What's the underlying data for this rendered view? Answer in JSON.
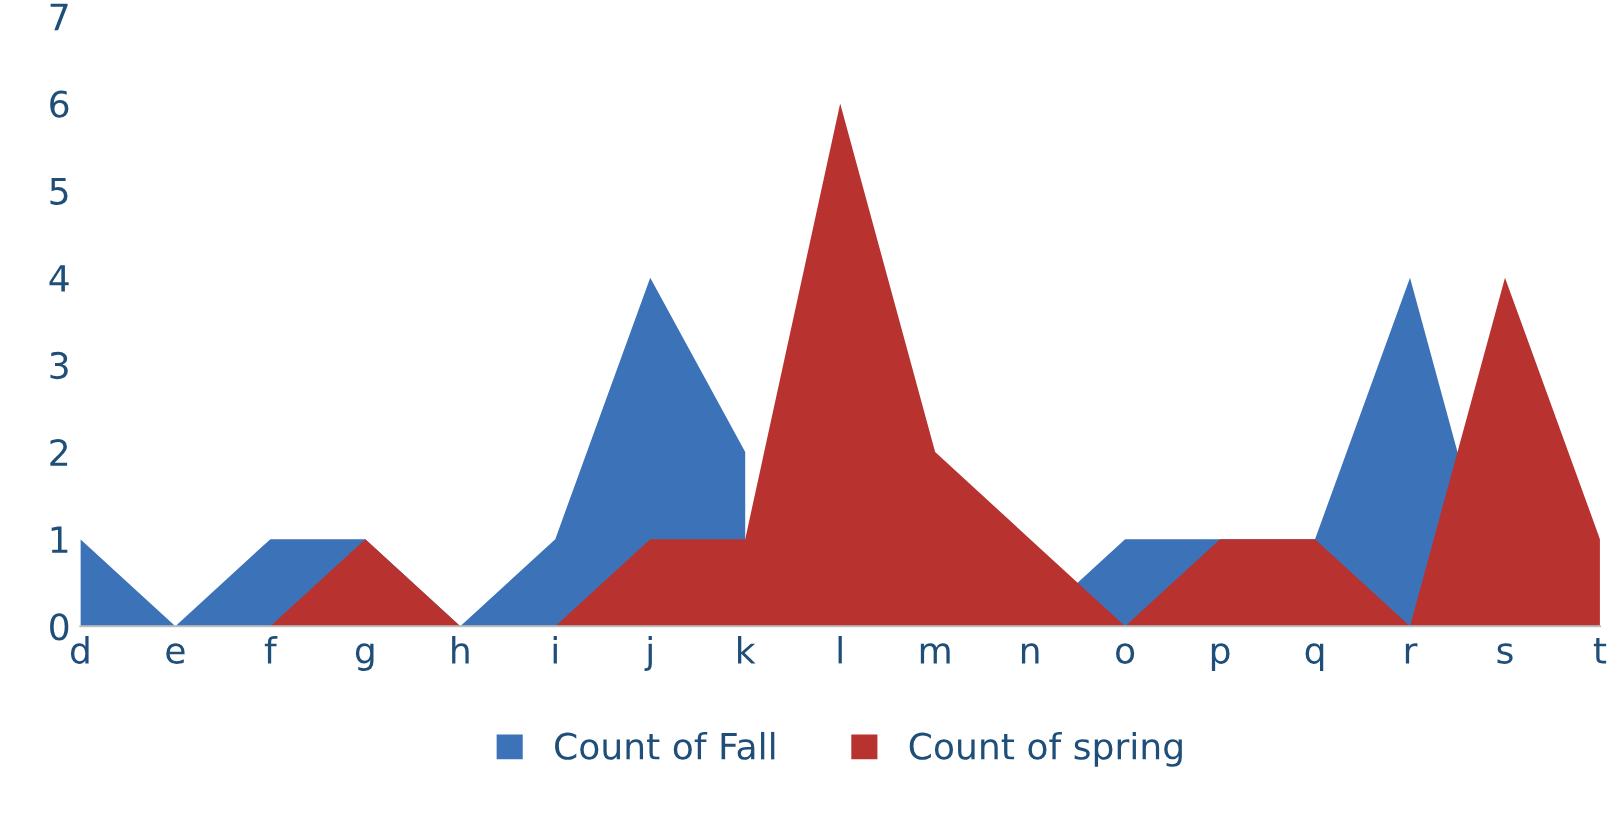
{
  "chart_data": {
    "type": "area",
    "categories": [
      "d",
      "e",
      "f",
      "g",
      "h",
      "i",
      "j",
      "k",
      "l",
      "m",
      "n",
      "o",
      "p",
      "q",
      "r",
      "s",
      "t"
    ],
    "series": [
      {
        "name": "Count of Fall",
        "color": "#3c72b8",
        "values": [
          1,
          0,
          1,
          1,
          0,
          1,
          4,
          2,
          null,
          null,
          0,
          1,
          1,
          1,
          4,
          0,
          null
        ]
      },
      {
        "name": "Count of spring",
        "color": "#b83330",
        "values": [
          0,
          0,
          0,
          1,
          0,
          0,
          1,
          1,
          6,
          2,
          1,
          0,
          1,
          1,
          0,
          4,
          1
        ]
      }
    ],
    "ylim": [
      0,
      7
    ],
    "yticks": [
      0,
      1,
      2,
      3,
      4,
      5,
      6,
      7
    ],
    "grid": false,
    "legend": "bottom"
  }
}
